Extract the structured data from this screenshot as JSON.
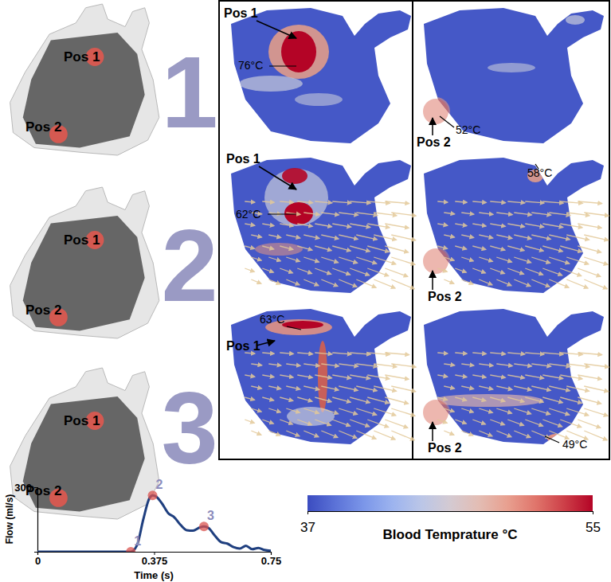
{
  "figure": {
    "rows": [
      {
        "label": "1",
        "model_labels": [
          "Pos 1",
          "Pos 2"
        ],
        "panels": [
          {
            "position": "Pos 1",
            "temperature": "76°C"
          },
          {
            "position": "Pos 2",
            "temperature": "52°C"
          }
        ]
      },
      {
        "label": "2",
        "model_labels": [
          "Pos 1",
          "Pos 2"
        ],
        "panels": [
          {
            "position": "Pos 1",
            "temperature": "62°C"
          },
          {
            "position": "Pos 2",
            "temperature": "58°C"
          }
        ]
      },
      {
        "label": "3",
        "model_labels": [
          "Pos 1",
          "Pos 2"
        ],
        "panels": [
          {
            "position": "Pos 1",
            "temperature": "63°C"
          },
          {
            "position": "Pos 2",
            "temperature": "49°C"
          }
        ]
      }
    ]
  },
  "chart_data": {
    "type": "line",
    "x_label": "Time (s)",
    "y_label": "Flow (ml/s)",
    "color": "#1f3f7f",
    "x": [
      0,
      0.29,
      0.3,
      0.32,
      0.34,
      0.36,
      0.37,
      0.38,
      0.4,
      0.42,
      0.44,
      0.46,
      0.48,
      0.5,
      0.52,
      0.535,
      0.55,
      0.57,
      0.59,
      0.61,
      0.63,
      0.65,
      0.67,
      0.69,
      0.71,
      0.73,
      0.75
    ],
    "values": [
      0,
      0,
      0,
      30,
      150,
      250,
      262,
      258,
      225,
      180,
      160,
      125,
      100,
      98,
      112,
      118,
      110,
      75,
      45,
      38,
      22,
      15,
      28,
      12,
      18,
      8,
      5
    ],
    "xlim": [
      0,
      0.75
    ],
    "ylim": [
      0,
      300
    ],
    "xticks": [
      0,
      0.375,
      0.75
    ],
    "yticks": [
      300
    ],
    "markers": {
      "x": [
        0.3,
        0.37,
        0.535
      ],
      "values": [
        0,
        262,
        118
      ],
      "labels": [
        "1",
        "2",
        "3"
      ]
    }
  },
  "colorbar": {
    "label": "Blood Temprature °C",
    "range": [
      37,
      55
    ],
    "ticks": [
      37,
      55
    ]
  }
}
